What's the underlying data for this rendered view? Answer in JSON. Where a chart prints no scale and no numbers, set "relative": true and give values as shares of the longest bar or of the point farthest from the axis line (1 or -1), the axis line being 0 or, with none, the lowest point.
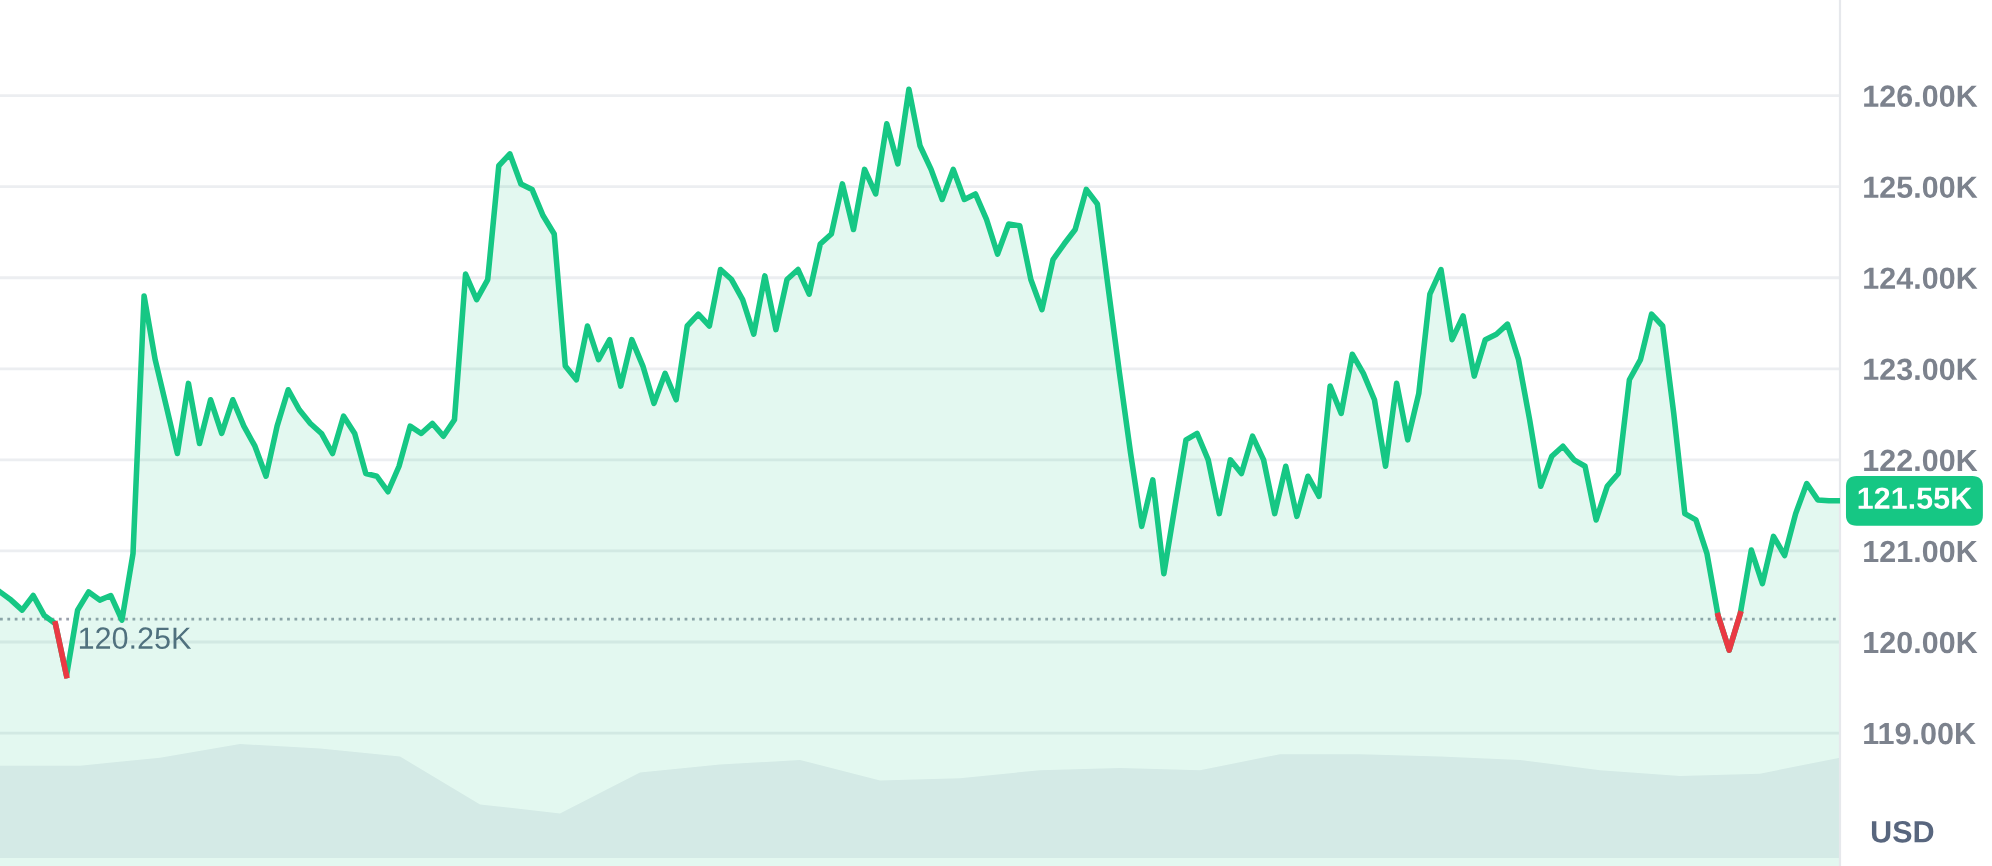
{
  "chart_data": [
    {
      "type": "area",
      "categories": [
        null,
        null,
        null,
        null,
        null,
        null,
        null,
        null,
        null,
        null,
        null,
        null,
        null,
        null,
        null,
        null,
        null,
        null,
        null,
        null,
        null,
        null,
        null,
        null,
        null,
        null,
        null,
        null,
        null,
        null,
        null,
        null,
        null,
        null,
        null,
        null,
        null,
        null,
        null,
        null,
        null,
        null,
        null,
        null,
        null,
        null,
        null,
        null,
        null,
        null,
        null,
        null,
        null,
        null,
        null,
        null,
        null,
        null,
        null,
        null,
        null,
        null,
        null,
        null,
        null,
        null,
        null,
        null,
        null,
        null,
        null,
        null,
        null,
        null,
        null,
        null,
        null,
        null,
        null,
        null,
        null,
        null,
        null,
        null,
        null,
        null,
        null,
        null,
        null,
        null,
        null,
        null,
        null,
        null,
        null,
        null,
        null,
        null,
        null,
        null,
        null,
        null,
        null,
        null,
        null,
        null,
        null,
        null,
        null,
        null,
        null,
        null,
        null,
        null,
        null,
        null,
        null,
        null,
        null,
        null,
        null,
        null,
        null,
        null,
        null,
        null,
        null,
        null,
        null,
        null,
        null,
        null,
        null,
        null,
        null,
        null,
        null,
        null,
        null,
        null,
        null,
        null,
        null,
        null,
        null,
        null,
        null,
        null,
        null,
        null,
        null,
        null,
        null,
        null,
        null,
        null,
        null,
        null,
        null,
        null,
        null,
        null,
        null,
        null,
        null,
        null,
        null
      ],
      "series": [
        {
          "type": "area",
          "color": "#16c784",
          "values": [
            120.55,
            120.46,
            120.35,
            120.51,
            120.29,
            120.2,
            119.63,
            120.35,
            120.55,
            120.46,
            120.51,
            120.24,
            120.97,
            123.8,
            123.1,
            122.59,
            122.07,
            122.84,
            122.18,
            122.66,
            122.29,
            122.66,
            122.37,
            122.15,
            121.82,
            122.37,
            122.77,
            122.55,
            122.4,
            122.29,
            122.07,
            122.48,
            122.29,
            121.85,
            121.82,
            121.65,
            121.93,
            122.37,
            122.29,
            122.4,
            122.26,
            122.44,
            124.04,
            123.76,
            123.98,
            125.23,
            125.36,
            125.03,
            124.97,
            124.68,
            124.48,
            123.03,
            122.88,
            123.47,
            123.1,
            123.32,
            122.81,
            123.32,
            123.03,
            122.62,
            122.95,
            122.66,
            123.47,
            123.6,
            123.47,
            124.09,
            123.98,
            123.76,
            123.38,
            124.02,
            123.43,
            123.98,
            124.09,
            123.82,
            124.37,
            124.48,
            125.03,
            124.53,
            125.19,
            124.92,
            125.69,
            125.25,
            126.07,
            125.45,
            125.19,
            124.86,
            125.19,
            124.86,
            124.92,
            124.64,
            124.26,
            124.59,
            124.57,
            123.98,
            123.65,
            124.2,
            124.37,
            124.53,
            124.97,
            124.81,
            123.87,
            122.95,
            122.07,
            121.27,
            121.78,
            120.75,
            121.49,
            122.22,
            122.29,
            122.0,
            121.41,
            122.0,
            121.85,
            122.26,
            122.0,
            121.41,
            121.93,
            121.38,
            121.82,
            121.6,
            122.81,
            122.51,
            123.16,
            122.95,
            122.66,
            121.93,
            122.84,
            122.22,
            122.73,
            123.82,
            124.09,
            123.32,
            123.58,
            122.92,
            123.32,
            123.38,
            123.49,
            123.1,
            122.44,
            121.71,
            122.04,
            122.15,
            122.0,
            121.93,
            121.34,
            121.71,
            121.85,
            122.88,
            123.1,
            123.6,
            123.47,
            122.51,
            121.41,
            121.34,
            120.97,
            120.29,
            119.91,
            120.31,
            121.01,
            120.64,
            121.16,
            120.95,
            121.41,
            121.74,
            121.56,
            121.55,
            121.55
          ]
        },
        {
          "type": "line",
          "color": "#ea3943",
          "values": [
            null,
            null,
            null,
            null,
            null,
            120.2,
            119.63,
            null,
            null,
            null,
            null,
            null,
            null,
            null,
            null,
            null,
            null,
            null,
            null,
            null,
            null,
            null,
            null,
            null,
            null,
            null,
            null,
            null,
            null,
            null,
            null,
            null,
            null,
            null,
            null,
            null,
            null,
            null,
            null,
            null,
            null,
            null,
            null,
            null,
            null,
            null,
            null,
            null,
            null,
            null,
            null,
            null,
            null,
            null,
            null,
            null,
            null,
            null,
            null,
            null,
            null,
            null,
            null,
            null,
            null,
            null,
            null,
            null,
            null,
            null,
            null,
            null,
            null,
            null,
            null,
            null,
            null,
            null,
            null,
            null,
            null,
            null,
            null,
            null,
            null,
            null,
            null,
            null,
            null,
            null,
            null,
            null,
            null,
            null,
            null,
            null,
            null,
            null,
            null,
            null,
            null,
            null,
            null,
            null,
            null,
            null,
            null,
            null,
            null,
            null,
            null,
            null,
            null,
            null,
            null,
            null,
            null,
            null,
            null,
            null,
            null,
            null,
            null,
            null,
            null,
            null,
            null,
            null,
            null,
            null,
            null,
            null,
            null,
            null,
            null,
            null,
            null,
            null,
            null,
            null,
            null,
            null,
            null,
            null,
            null,
            null,
            null,
            null,
            null,
            null,
            null,
            null,
            null,
            null,
            null,
            120.29,
            119.91,
            120.31,
            null,
            null,
            null,
            null,
            null,
            null,
            null,
            null,
            null
          ]
        }
      ],
      "ylim": [
        117.54,
        127.05
      ],
      "yticks": [
        {
          "value": 119,
          "label": "119.00K"
        },
        {
          "value": 120,
          "label": "120.00K"
        },
        {
          "value": 121,
          "label": "121.00K"
        },
        {
          "value": 122,
          "label": "122.00K"
        },
        {
          "value": 123,
          "label": "123.00K"
        },
        {
          "value": 124,
          "label": "124.00K"
        },
        {
          "value": 125,
          "label": "125.00K"
        },
        {
          "value": 126,
          "label": "126.00K"
        }
      ],
      "ref_lines": [
        {
          "axis": "y",
          "value": 120.25,
          "label": "120.25K",
          "color": "#9aa0ac",
          "line_style": "dotted"
        }
      ],
      "annotations": [
        "121.55K",
        "USD"
      ],
      "grid": "y",
      "tick_labels": "y"
    },
    {
      "type": "area",
      "relative": true,
      "color": "#eef0f4",
      "categories": [
        null,
        null,
        null,
        null,
        null,
        null,
        null,
        null,
        null,
        null,
        null,
        null,
        null,
        null,
        null,
        null,
        null,
        null,
        null,
        null,
        null,
        null,
        null,
        null
      ],
      "values": [
        0.81,
        0.81,
        0.88,
        1,
        0.96,
        0.89,
        0.47,
        0.39,
        0.75,
        0.82,
        0.86,
        0.68,
        0.7,
        0.77,
        0.79,
        0.77,
        0.91,
        0.91,
        0.89,
        0.86,
        0.77,
        0.72,
        0.74,
        0.88
      ]
    }
  ]
}
